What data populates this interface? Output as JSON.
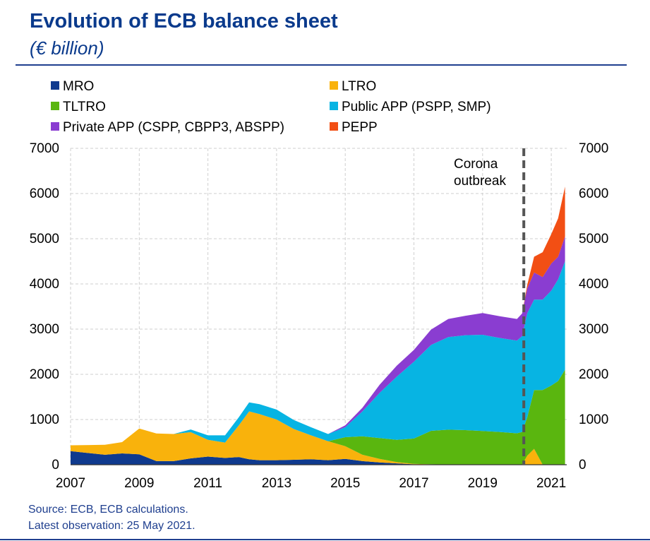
{
  "header": {
    "title": "Evolution of ECB balance sheet",
    "subtitle": "(€ billion)"
  },
  "footer": {
    "source": "Source: ECB, ECB calculations.",
    "latest": "Latest observation: 25 May 2021."
  },
  "chart_data": {
    "type": "area",
    "stacked": true,
    "annotation": {
      "text_line1": "Corona",
      "text_line2": "outbreak",
      "x": 2020.2
    },
    "xlim": [
      2007,
      2021.45
    ],
    "ylim": [
      0,
      7000
    ],
    "x_ticks": [
      "2007",
      "2009",
      "2011",
      "2013",
      "2015",
      "2017",
      "2019",
      "2021"
    ],
    "y_ticks": [
      "0",
      "1000",
      "2000",
      "3000",
      "4000",
      "5000",
      "6000",
      "7000"
    ],
    "grid": true,
    "legend_position": "top",
    "x": [
      2007.0,
      2008.0,
      2008.5,
      2009.0,
      2009.5,
      2010.0,
      2010.5,
      2011.0,
      2011.5,
      2011.9,
      2012.2,
      2012.5,
      2013.0,
      2013.5,
      2014.0,
      2014.5,
      2015.0,
      2015.5,
      2016.0,
      2016.5,
      2017.0,
      2017.5,
      2018.0,
      2018.5,
      2019.0,
      2019.5,
      2020.0,
      2020.15,
      2020.3,
      2020.5,
      2020.75,
      2021.0,
      2021.2,
      2021.4
    ],
    "series": [
      {
        "name": "MRO",
        "color": "#0f3a8e",
        "values": [
          300,
          220,
          250,
          230,
          80,
          80,
          140,
          180,
          150,
          170,
          120,
          100,
          100,
          110,
          120,
          100,
          130,
          80,
          50,
          30,
          10,
          5,
          5,
          5,
          5,
          5,
          5,
          5,
          2,
          2,
          2,
          1,
          1,
          1
        ]
      },
      {
        "name": "LTRO",
        "color": "#f9b20c",
        "values": [
          130,
          220,
          250,
          570,
          610,
          600,
          580,
          370,
          340,
          700,
          1060,
          1020,
          900,
          680,
          530,
          420,
          280,
          140,
          80,
          30,
          10,
          5,
          0,
          0,
          0,
          0,
          0,
          0,
          200,
          350,
          0,
          0,
          0,
          0
        ]
      },
      {
        "name": "TLTRO",
        "color": "#5ab60f",
        "values": [
          0,
          0,
          0,
          0,
          0,
          0,
          0,
          0,
          0,
          0,
          0,
          0,
          0,
          0,
          0,
          0,
          200,
          410,
          460,
          490,
          560,
          740,
          770,
          760,
          740,
          720,
          690,
          720,
          850,
          1300,
          1650,
          1750,
          1850,
          2100
        ]
      },
      {
        "name": "Public APP (PSPP, SMP)",
        "color": "#07b4e3",
        "values": [
          0,
          0,
          0,
          0,
          0,
          0,
          60,
          100,
          160,
          180,
          200,
          220,
          220,
          200,
          180,
          160,
          220,
          550,
          1000,
          1400,
          1700,
          1900,
          2050,
          2100,
          2130,
          2080,
          2050,
          2120,
          2300,
          2000,
          2000,
          2100,
          2250,
          2400
        ]
      },
      {
        "name": "Private APP (CSPP, CBPP3, ABSPP)",
        "color": "#8a3dd1",
        "values": [
          0,
          0,
          0,
          0,
          0,
          0,
          0,
          0,
          0,
          0,
          0,
          0,
          0,
          0,
          0,
          0,
          40,
          80,
          180,
          240,
          260,
          340,
          400,
          430,
          480,
          480,
          480,
          500,
          550,
          600,
          500,
          600,
          500,
          550
        ]
      },
      {
        "name": "PEPP",
        "color": "#f24f14",
        "values": [
          0,
          0,
          0,
          0,
          0,
          0,
          0,
          0,
          0,
          0,
          0,
          0,
          0,
          0,
          0,
          0,
          0,
          0,
          0,
          0,
          0,
          0,
          0,
          0,
          0,
          0,
          0,
          0,
          80,
          350,
          550,
          650,
          850,
          1100
        ]
      }
    ]
  }
}
